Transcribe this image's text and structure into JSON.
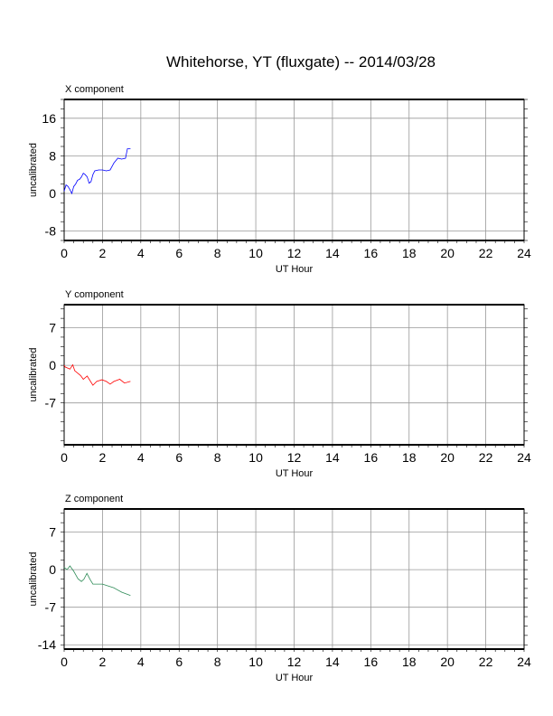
{
  "title": "Whitehorse, YT (fluxgate) -- 2014/03/28",
  "chart_data": [
    {
      "type": "line",
      "title": "X component",
      "xlabel": "UT Hour",
      "ylabel": "uncalibrated",
      "xlim": [
        0,
        24
      ],
      "ylim": [
        -10,
        20
      ],
      "xticks": [
        0,
        2,
        4,
        6,
        8,
        10,
        12,
        14,
        16,
        18,
        20,
        22,
        24
      ],
      "yticks": [
        -8,
        0,
        8,
        16
      ],
      "color": "#0000ff",
      "grid": true,
      "x": [
        0,
        0.1,
        0.2,
        0.3,
        0.4,
        0.5,
        0.6,
        0.7,
        0.8,
        0.9,
        1.0,
        1.1,
        1.2,
        1.3,
        1.4,
        1.5,
        1.6,
        1.8,
        2.0,
        2.2,
        2.4,
        2.6,
        2.8,
        3.0,
        3.2,
        3.3,
        3.45
      ],
      "y": [
        0.5,
        1.8,
        1.5,
        0.8,
        0,
        1.5,
        2,
        2.8,
        3,
        3.5,
        4.3,
        4,
        3.5,
        2.2,
        2.5,
        4,
        4.8,
        5,
        5,
        4.8,
        5,
        6.5,
        7.5,
        7.3,
        7.5,
        9.5,
        9.5
      ]
    },
    {
      "type": "line",
      "title": "Y component",
      "xlabel": "UT Hour",
      "ylabel": "uncalibrated",
      "xlim": [
        0,
        24
      ],
      "ylim": [
        -14.8,
        11.3
      ],
      "xticks": [
        0,
        2,
        4,
        6,
        8,
        10,
        12,
        14,
        16,
        18,
        20,
        22,
        24
      ],
      "yticks": [
        -7,
        0,
        7
      ],
      "color": "#ff0000",
      "grid": true,
      "x": [
        0,
        0.05,
        0.3,
        0.45,
        0.55,
        0.86,
        1.0,
        1.2,
        1.5,
        1.7,
        1.97,
        2.2,
        2.4,
        2.6,
        2.9,
        3.15,
        3.45
      ],
      "y": [
        0,
        -0.3,
        -0.7,
        0.1,
        -1,
        -1.9,
        -2.6,
        -2,
        -3.7,
        -3,
        -2.7,
        -3,
        -3.5,
        -3,
        -2.6,
        -3.3,
        -3
      ]
    },
    {
      "type": "line",
      "title": "Z component",
      "xlabel": "UT Hour",
      "ylabel": "uncalibrated",
      "xlim": [
        0,
        24
      ],
      "ylim": [
        -14.8,
        11.3
      ],
      "xticks": [
        0,
        2,
        4,
        6,
        8,
        10,
        12,
        14,
        16,
        18,
        20,
        22,
        24
      ],
      "yticks": [
        -14,
        -7,
        0,
        7
      ],
      "color": "#2e8b57",
      "grid": true,
      "x": [
        0,
        0.15,
        0.3,
        0.5,
        0.72,
        0.9,
        1.03,
        1.19,
        1.35,
        1.5,
        2.0,
        2.6,
        3.0,
        3.45
      ],
      "y": [
        0.4,
        0,
        0.7,
        -0.3,
        -1.7,
        -2.2,
        -1.8,
        -0.7,
        -1.8,
        -2.7,
        -2.7,
        -3.4,
        -4.2,
        -4.8
      ]
    }
  ]
}
